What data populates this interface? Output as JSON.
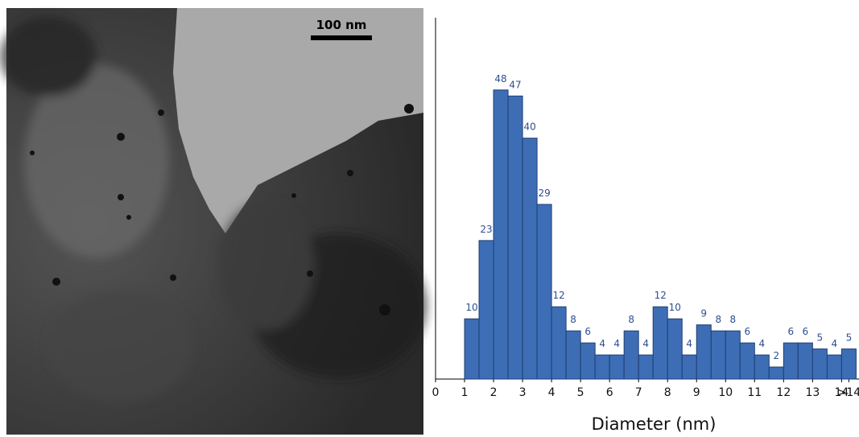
{
  "image": {
    "scale_bar": "100 nm"
  },
  "chart_data": {
    "type": "histogram",
    "xlabel": "Diameter (nm)",
    "bins": [
      1,
      1.5,
      2,
      2.5,
      3,
      3.5,
      4,
      4.5,
      5,
      5.5,
      6,
      6.5,
      7,
      7.5,
      8,
      8.5,
      9,
      9.5,
      10,
      10.5,
      11,
      11.5,
      12,
      12.5,
      13,
      13.5,
      14,
      14.5
    ],
    "values": [
      10,
      23,
      48,
      47,
      40,
      29,
      12,
      8,
      6,
      4,
      4,
      8,
      4,
      12,
      10,
      4,
      9,
      8,
      8,
      6,
      4,
      2,
      6,
      6,
      5,
      4,
      5
    ],
    "color": "#3d6db5",
    "xlim": [
      0,
      14.6
    ],
    "xticks": [
      0,
      1,
      2,
      3,
      4,
      5,
      6,
      7,
      8,
      9,
      10,
      11,
      12,
      13,
      14,
      {
        "value": 14.25,
        "label": ">14"
      }
    ],
    "ylim": [
      0,
      60
    ]
  }
}
